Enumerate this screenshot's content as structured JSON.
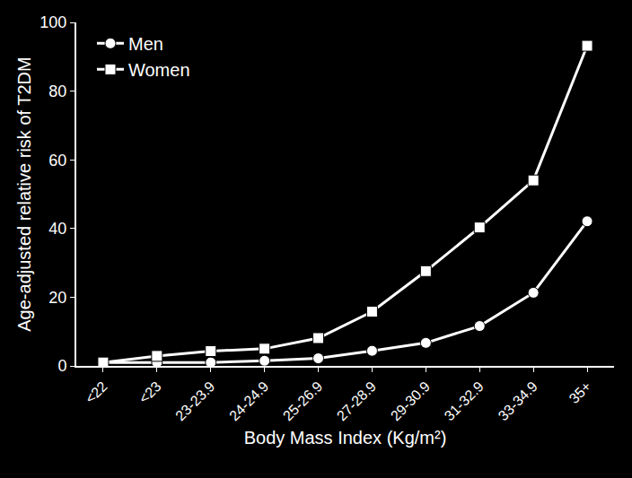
{
  "chart_data": {
    "type": "line",
    "xlabel": "Body Mass Index (Kg/m²)",
    "ylabel": "Age-adjusted relative risk of T2DM",
    "categories": [
      "<22",
      "<23",
      "23-23.9",
      "24-24.9",
      "25-26.9",
      "27-28.9",
      "29-30.9",
      "31-32.9",
      "33-34.9",
      "35+"
    ],
    "series": [
      {
        "name": "Men",
        "color": "#ffffff",
        "marker": "circle",
        "line_style": "solid",
        "values": [
          1,
          1,
          1,
          1.5,
          2.2,
          4.4,
          6.7,
          11.6,
          21.3,
          42.1
        ]
      },
      {
        "name": "Women",
        "color": "#ffffff",
        "marker": "square",
        "line_style": "solid",
        "values": [
          1,
          2.9,
          4.3,
          5,
          8.1,
          15.8,
          27.6,
          40.3,
          54,
          93.2
        ]
      }
    ],
    "ylim": [
      0,
      100
    ],
    "yticks": [
      0,
      20,
      40,
      60,
      80,
      100
    ],
    "grid": false,
    "legend": "top-left"
  }
}
